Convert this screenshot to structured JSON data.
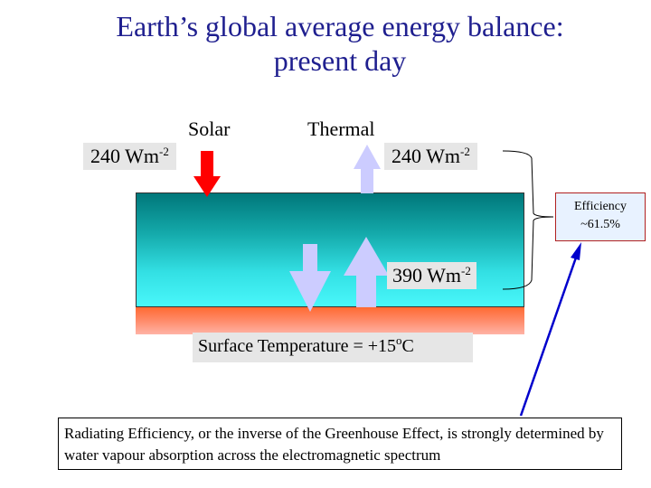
{
  "title_line1": "Earth’s global average energy balance:",
  "title_line2": "present day",
  "solar_label": "Solar",
  "thermal_label": "Thermal",
  "solar_flux": {
    "value": "240 Wm",
    "exp": "-2"
  },
  "thermal_flux": {
    "value": "240 Wm",
    "exp": "-2"
  },
  "surface_flux": {
    "value": "390 Wm",
    "exp": "-2"
  },
  "efficiency": {
    "line1": "Efficiency",
    "line2": "~61.5%"
  },
  "surface_temp": {
    "text": "Surface Temperature = +15",
    "unit": "C",
    "degree": "o"
  },
  "caption": "Radiating Efficiency, or the inverse of the Greenhouse Effect, is strongly determined by water vapour absorption across the electromagnetic spectrum",
  "colors": {
    "title": "#1f1f8f",
    "solar_arrow": "#ff0000",
    "thermal_arrow": "#ccccff",
    "pointer": "#0000cc"
  }
}
